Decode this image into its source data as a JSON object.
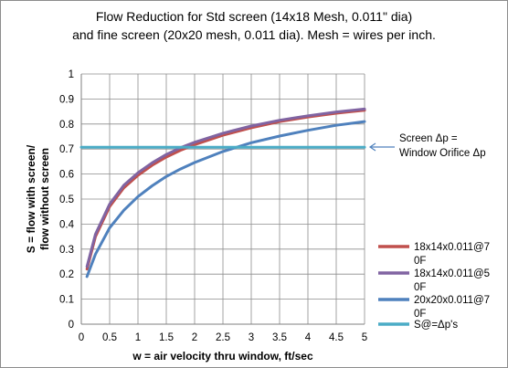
{
  "chart_data": {
    "type": "line",
    "title_line1": "Flow  Reduction for Std screen (14x18 Mesh, 0.011\" dia)",
    "title_line2": "and fine screen (20x20 mesh, 0.011 dia).  Mesh = wires per inch.",
    "xlabel": "w = air velocity thru window, ft/sec",
    "ylabel_line1": "S = flow with screen/",
    "ylabel_line2": "flow without screen",
    "xlim": [
      0,
      5
    ],
    "ylim": [
      0,
      1
    ],
    "x_ticks": [
      "0",
      "0.5",
      "1",
      "1.5",
      "2",
      "2.5",
      "3",
      "3.5",
      "4",
      "4.5",
      "5"
    ],
    "y_ticks": [
      "0",
      "0.1",
      "0.2",
      "0.3",
      "0.4",
      "0.5",
      "0.6",
      "0.7",
      "0.8",
      "0.9",
      "1"
    ],
    "grid": true,
    "legend_position": "right",
    "annotation": [
      "Screen Δp  =",
      "Window  Orifice  Δp"
    ],
    "series": [
      {
        "name": [
          "18x14x0.011@7",
          "0F"
        ],
        "color": "#c0504d",
        "x": [
          0.1,
          0.25,
          0.5,
          0.75,
          1,
          1.25,
          1.5,
          1.75,
          2,
          2.5,
          3,
          3.5,
          4,
          4.5,
          5
        ],
        "y": [
          0.22,
          0.35,
          0.47,
          0.545,
          0.595,
          0.635,
          0.668,
          0.695,
          0.717,
          0.755,
          0.785,
          0.81,
          0.828,
          0.843,
          0.855
        ]
      },
      {
        "name": [
          "18x14x0.011@5",
          "0F"
        ],
        "color": "#8064a2",
        "x": [
          0.1,
          0.25,
          0.5,
          0.75,
          1,
          1.25,
          1.5,
          1.75,
          2,
          2.5,
          3,
          3.5,
          4,
          4.5,
          5
        ],
        "y": [
          0.23,
          0.36,
          0.48,
          0.555,
          0.605,
          0.645,
          0.678,
          0.705,
          0.727,
          0.763,
          0.792,
          0.815,
          0.833,
          0.848,
          0.86
        ]
      },
      {
        "name": [
          "20x20x0.011@7",
          "0F"
        ],
        "color": "#4f81bd",
        "x": [
          0.1,
          0.25,
          0.5,
          0.75,
          1,
          1.25,
          1.5,
          1.75,
          2,
          2.5,
          3,
          3.5,
          4,
          4.5,
          5
        ],
        "y": [
          0.19,
          0.28,
          0.385,
          0.455,
          0.51,
          0.553,
          0.59,
          0.62,
          0.646,
          0.69,
          0.725,
          0.752,
          0.775,
          0.795,
          0.81
        ]
      },
      {
        "name": [
          "S@=Δp's"
        ],
        "color": "#4bacc6",
        "x": [
          0,
          5
        ],
        "y": [
          0.707,
          0.707
        ]
      }
    ]
  }
}
